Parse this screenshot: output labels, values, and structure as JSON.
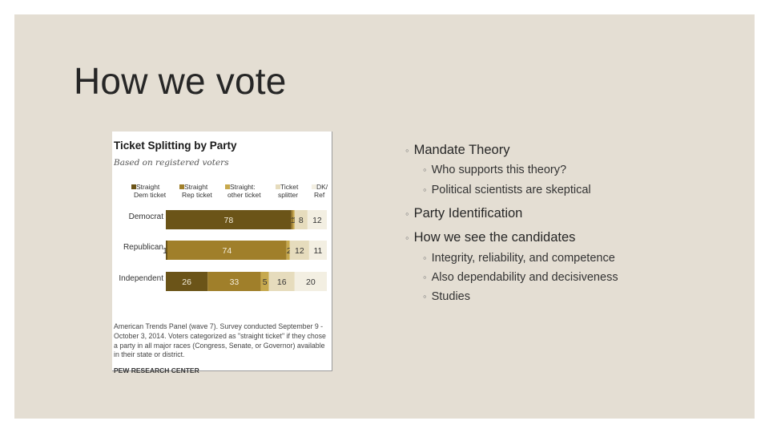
{
  "slide": {
    "title": "How we vote",
    "bullets": [
      {
        "text": "Mandate Theory",
        "sub": [
          "Who supports this theory?",
          "Political scientists are skeptical"
        ]
      },
      {
        "text": "Party Identification",
        "sub": []
      },
      {
        "text": "How we see the candidates",
        "sub": [
          "Integrity, reliability, and competence",
          "Also dependability and decisiveness",
          "Studies"
        ]
      }
    ],
    "bullet_marker": "◦"
  },
  "chart_data": {
    "type": "bar",
    "orientation": "horizontal",
    "stacked": true,
    "title": "Ticket Splitting by Party",
    "subtitle": "Based on registered voters",
    "categories": [
      "Democrat",
      "Republican",
      "Independent"
    ],
    "series": [
      {
        "name": "Straight Dem ticket",
        "color": "#6b5418",
        "values": [
          78,
          1,
          26
        ]
      },
      {
        "name": "Straight Rep ticket",
        "color": "#a07f2a",
        "values": [
          1,
          74,
          33
        ]
      },
      {
        "name": "Straight: other ticket",
        "color": "#c7a94e",
        "values": [
          1,
          2,
          5
        ]
      },
      {
        "name": "Ticket splitter",
        "color": "#e6dcbd",
        "values": [
          8,
          12,
          16
        ]
      },
      {
        "name": "DK/ Ref",
        "color": "#f3efe2",
        "values": [
          12,
          11,
          20
        ]
      }
    ],
    "legend_lines": [
      [
        "Straight",
        "Dem ticket"
      ],
      [
        "Straight",
        "Rep ticket"
      ],
      [
        "Straight:",
        "other ticket"
      ],
      [
        "Ticket",
        "splitter"
      ],
      [
        "DK/",
        "Ref"
      ]
    ],
    "footnote": "American Trends Panel (wave 7). Survey conducted September 9 - October 3, 2014. Voters categorized as \"straight ticket\" if they chose a party in all major races (Congress, Senate, or Governor) available in their state or district.",
    "source": "PEW RESEARCH CENTER",
    "legend": "top"
  }
}
